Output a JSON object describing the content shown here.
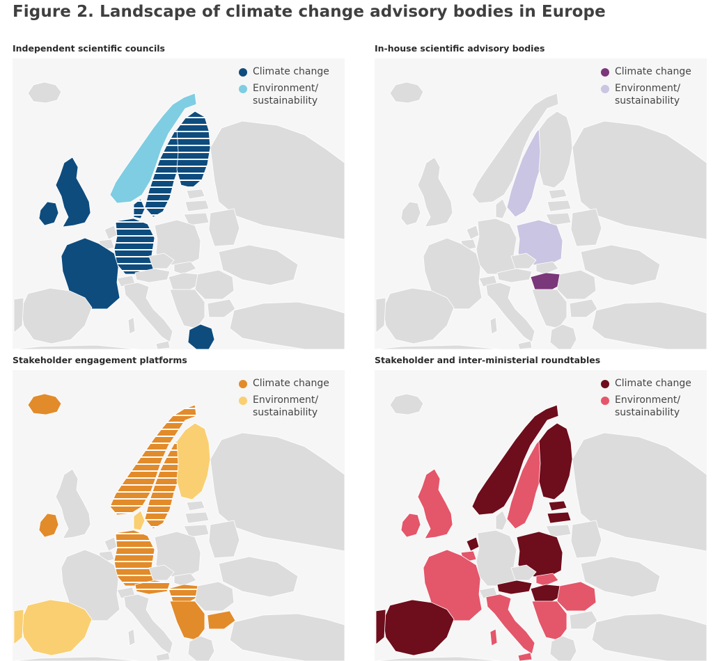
{
  "figure": {
    "title": "Figure 2. Landscape of climate change advisory bodies in Europe"
  },
  "panels": [
    {
      "title": "Independent scientific councils",
      "legend": [
        {
          "label": "Climate change",
          "color": "#0e4c7e"
        },
        {
          "label": "Environment/ sustainability",
          "color": "#7fcde2"
        }
      ]
    },
    {
      "title": "In-house scientific advisory bodies",
      "legend": [
        {
          "label": "Climate change",
          "color": "#7a3779"
        },
        {
          "label": "Environment/ sustainability",
          "color": "#c9c5e2"
        }
      ]
    },
    {
      "title": "Stakeholder engagement platforms",
      "legend": [
        {
          "label": "Climate change",
          "color": "#e28b2a"
        },
        {
          "label": "Environment/ sustainability",
          "color": "#f9cf72"
        }
      ]
    },
    {
      "title": "Stakeholder and inter-ministerial roundtables",
      "legend": [
        {
          "label": "Climate change",
          "color": "#6e0d1c"
        },
        {
          "label": "Environment/ sustainability",
          "color": "#e4566a"
        }
      ]
    }
  ],
  "base_colors": {
    "land": "#dcdcdc",
    "sea": "#f6f6f6",
    "stripe": "#ffffff"
  }
}
